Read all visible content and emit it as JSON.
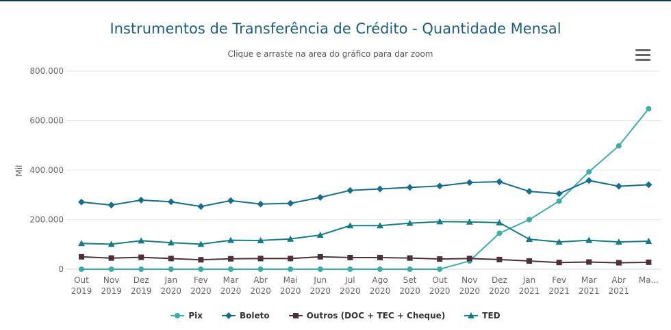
{
  "chart_data": {
    "type": "line",
    "title": "Instrumentos de Transferência de Crédito - Quantidade Mensal",
    "subtitle": "Clique e arraste na area do gráfico para dar zoom",
    "ylabel": "Mil",
    "ylim": [
      0,
      800000
    ],
    "yticks": [
      "0",
      "200.000",
      "400.000",
      "600.000",
      "800.000"
    ],
    "ytick_values": [
      0,
      200000,
      400000,
      600000,
      800000
    ],
    "grid": true,
    "legend_position": "bottom",
    "categories": [
      {
        "month": "Out",
        "year": "2019"
      },
      {
        "month": "Nov",
        "year": "2019"
      },
      {
        "month": "Dez",
        "year": "2019"
      },
      {
        "month": "Jan",
        "year": "2020"
      },
      {
        "month": "Fev",
        "year": "2020"
      },
      {
        "month": "Mar",
        "year": "2020"
      },
      {
        "month": "Abr",
        "year": "2020"
      },
      {
        "month": "Mai",
        "year": "2020"
      },
      {
        "month": "Jun",
        "year": "2020"
      },
      {
        "month": "Jul",
        "year": "2020"
      },
      {
        "month": "Ago",
        "year": "2020"
      },
      {
        "month": "Set",
        "year": "2020"
      },
      {
        "month": "Out",
        "year": "2020"
      },
      {
        "month": "Nov",
        "year": "2020"
      },
      {
        "month": "Dez",
        "year": "2020"
      },
      {
        "month": "Jan",
        "year": "2021"
      },
      {
        "month": "Fev",
        "year": "2021"
      },
      {
        "month": "Mar",
        "year": "2021"
      },
      {
        "month": "Abr",
        "year": "2021"
      },
      {
        "month": "Ma...",
        "year": ""
      }
    ],
    "series": [
      {
        "name": "Pix",
        "color": "#3aaea6",
        "marker": "circle",
        "values": [
          0,
          0,
          0,
          0,
          0,
          0,
          0,
          0,
          0,
          0,
          0,
          0,
          0,
          33000,
          145000,
          200000,
          275000,
          393000,
          498000,
          648000
        ]
      },
      {
        "name": "Boleto",
        "color": "#156f8a",
        "marker": "diamond",
        "values": [
          271000,
          259000,
          279000,
          272000,
          253000,
          277000,
          263000,
          266000,
          290000,
          318000,
          324000,
          330000,
          336000,
          350000,
          353000,
          314000,
          305000,
          358000,
          335000,
          341000
        ]
      },
      {
        "name": "Outros (DOC + TEC + Cheque)",
        "color": "#4a3238",
        "marker": "square",
        "values": [
          50000,
          45000,
          48000,
          43000,
          38000,
          42000,
          43000,
          43000,
          50000,
          47000,
          47000,
          45000,
          41000,
          43000,
          39000,
          33000,
          27000,
          29000,
          26000,
          28000
        ]
      },
      {
        "name": "TED",
        "color": "#137c84",
        "marker": "triangle",
        "values": [
          104000,
          101000,
          115000,
          107000,
          101000,
          117000,
          116000,
          122000,
          138000,
          176000,
          176000,
          186000,
          192000,
          191000,
          188000,
          121000,
          110000,
          117000,
          110000,
          113000
        ]
      }
    ]
  }
}
